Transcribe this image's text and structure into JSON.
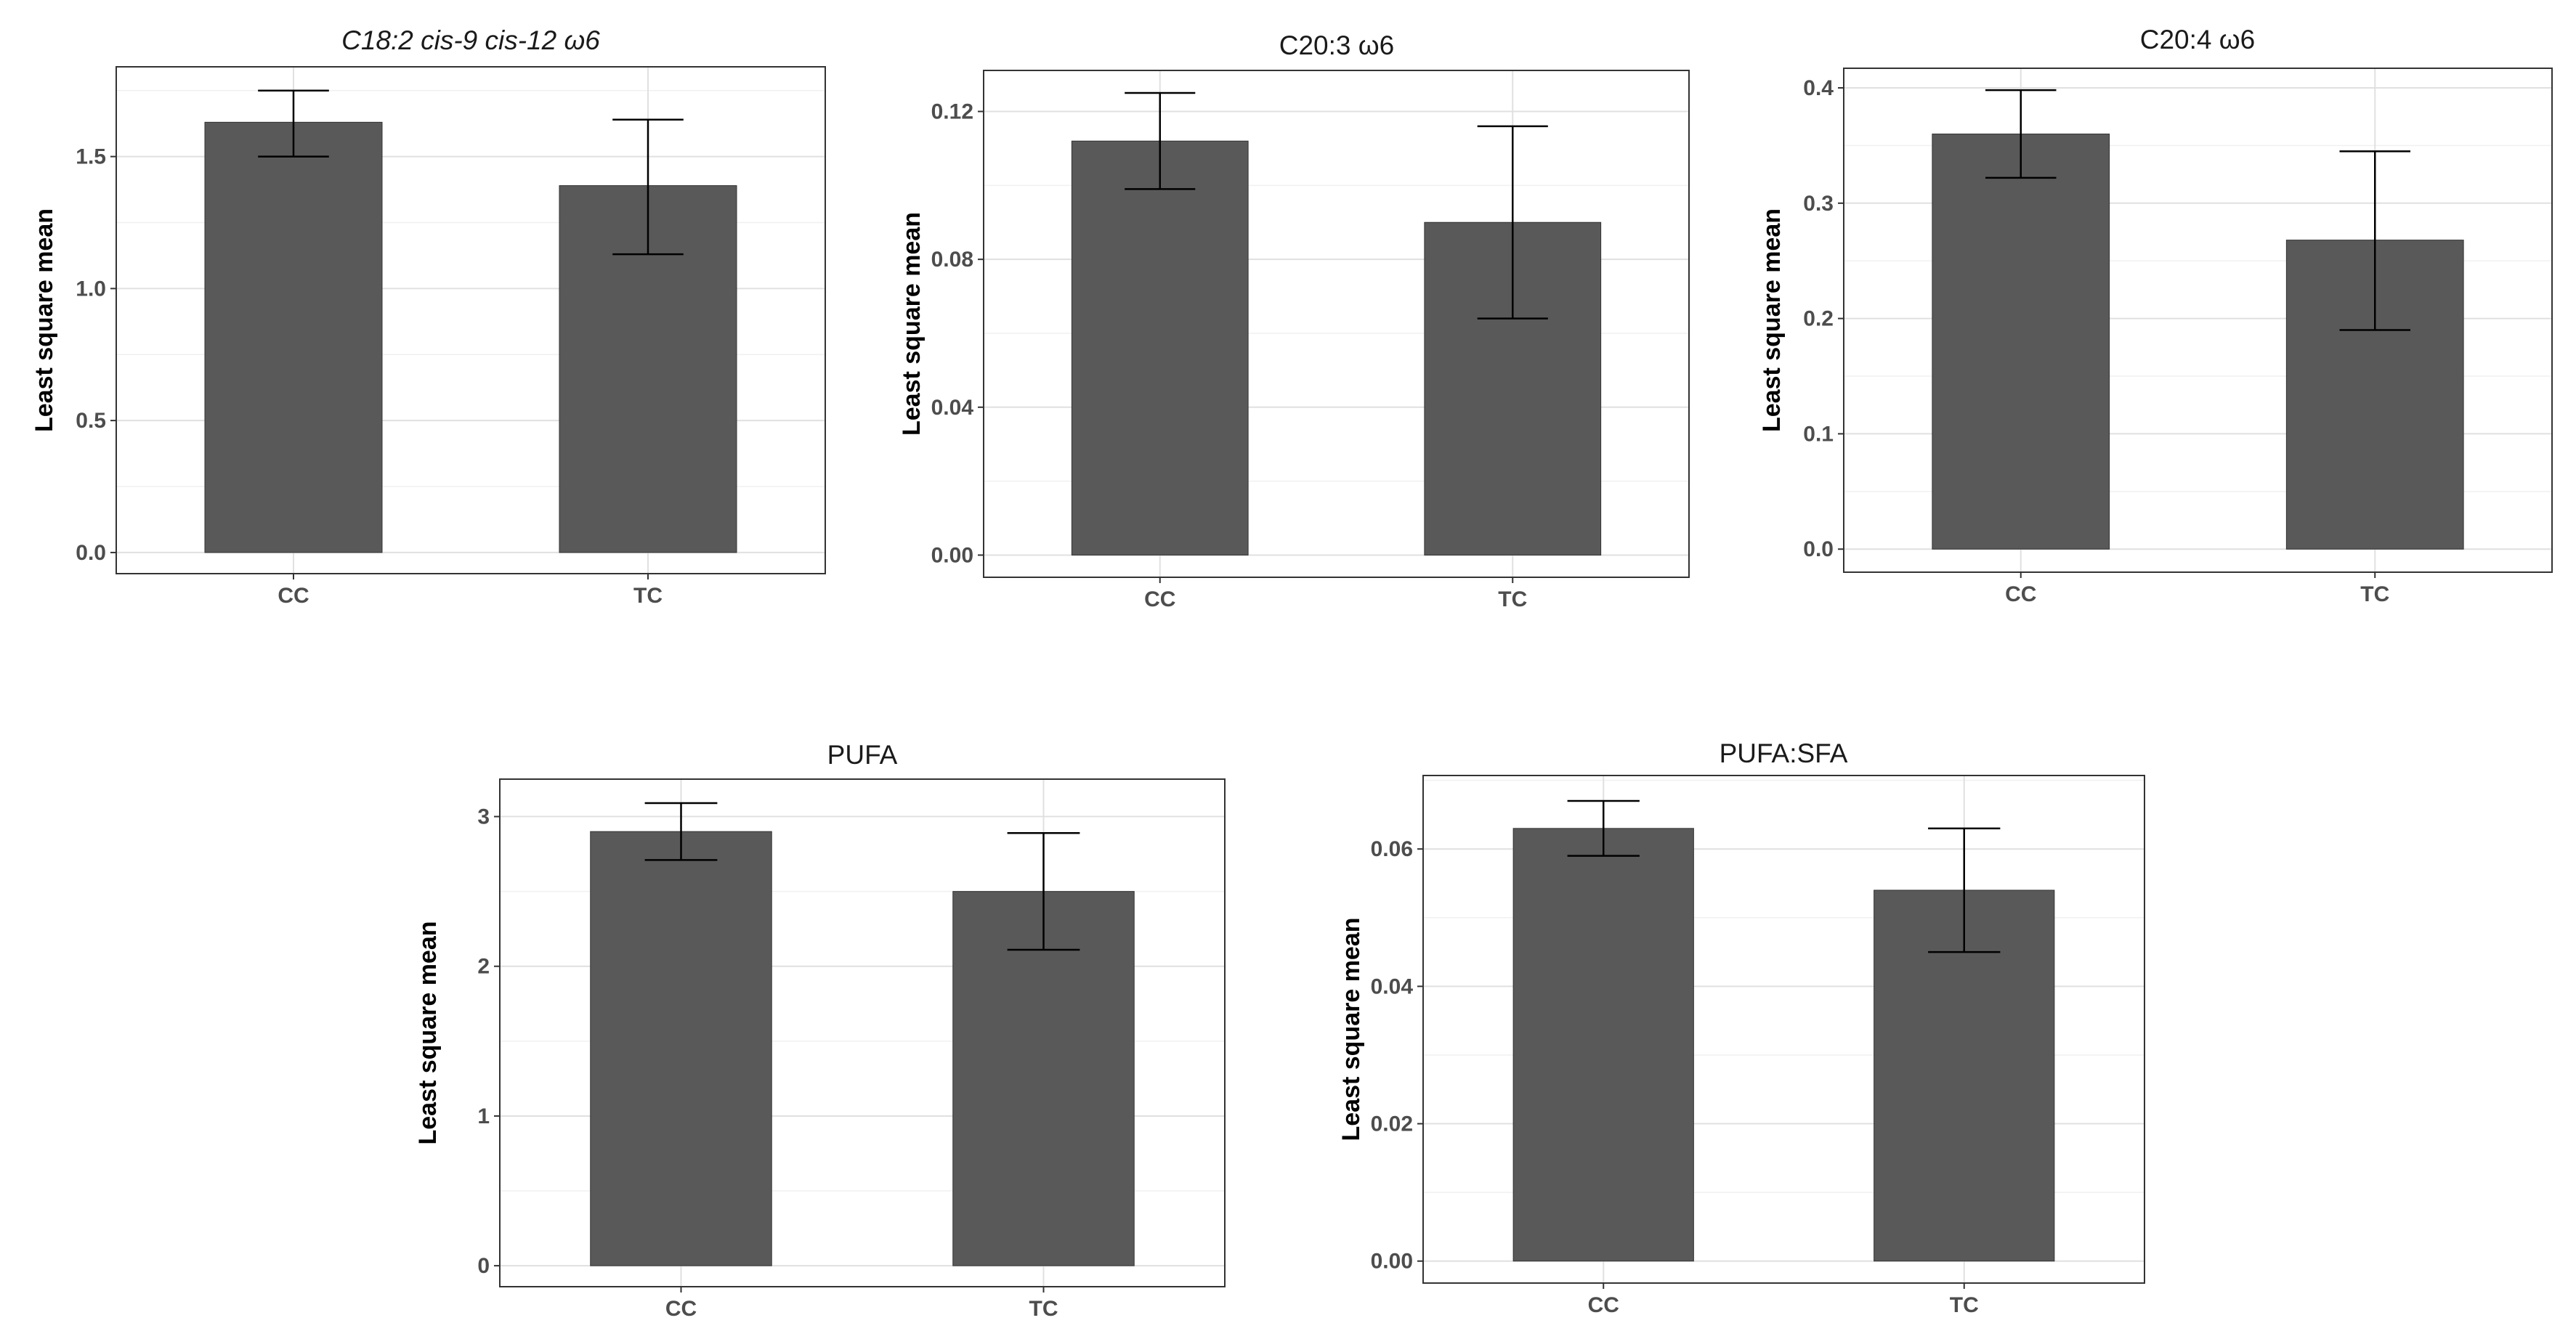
{
  "chart_data": [
    {
      "type": "bar",
      "title": "C18:2 cis-9 cis-12 ω6",
      "title_italic": true,
      "ylabel": "Least square mean",
      "xlabel": "",
      "categories": [
        "CC",
        "TC"
      ],
      "values": [
        1.63,
        1.39
      ],
      "error_low": [
        1.5,
        1.13
      ],
      "error_high": [
        1.75,
        1.64
      ],
      "ylim": [
        -0.08,
        1.84
      ],
      "yticks": [
        0.0,
        0.5,
        1.0,
        1.5
      ],
      "ytick_labels": [
        "0.0",
        "0.5",
        "1.0",
        "1.5"
      ],
      "grid": true
    },
    {
      "type": "bar",
      "title": "C20:3 ω6",
      "title_italic": false,
      "ylabel": "Least square mean",
      "xlabel": "",
      "categories": [
        "CC",
        "TC"
      ],
      "values": [
        0.112,
        0.09
      ],
      "error_low": [
        0.099,
        0.064
      ],
      "error_high": [
        0.125,
        0.116
      ],
      "ylim": [
        -0.006,
        0.1311
      ],
      "yticks": [
        0.0,
        0.04,
        0.08,
        0.12
      ],
      "ytick_labels": [
        "0.00",
        "0.04",
        "0.08",
        "0.12"
      ],
      "grid": true
    },
    {
      "type": "bar",
      "title": "C20:4 ω6",
      "title_italic": false,
      "ylabel": "Least square mean",
      "xlabel": "",
      "categories": [
        "CC",
        "TC"
      ],
      "values": [
        0.36,
        0.268
      ],
      "error_low": [
        0.322,
        0.19
      ],
      "error_high": [
        0.398,
        0.345
      ],
      "ylim": [
        -0.02,
        0.417
      ],
      "yticks": [
        0.0,
        0.1,
        0.2,
        0.3,
        0.4
      ],
      "ytick_labels": [
        "0.0",
        "0.1",
        "0.2",
        "0.3",
        "0.4"
      ],
      "grid": true
    },
    {
      "type": "bar",
      "title": "PUFA",
      "title_italic": false,
      "ylabel": "Least square mean",
      "xlabel": "",
      "categories": [
        "CC",
        "TC"
      ],
      "values": [
        2.9,
        2.5
      ],
      "error_low": [
        2.71,
        2.11
      ],
      "error_high": [
        3.09,
        2.89
      ],
      "ylim": [
        -0.14,
        3.25
      ],
      "yticks": [
        0,
        1,
        2,
        3
      ],
      "ytick_labels": [
        "0",
        "1",
        "2",
        "3"
      ],
      "grid": true
    },
    {
      "type": "bar",
      "title": "PUFA:SFA",
      "title_italic": false,
      "ylabel": "Least square mean",
      "xlabel": "",
      "categories": [
        "CC",
        "TC"
      ],
      "values": [
        0.063,
        0.054
      ],
      "error_low": [
        0.059,
        0.045
      ],
      "error_high": [
        0.067,
        0.063
      ],
      "ylim": [
        -0.0032,
        0.0707
      ],
      "yticks": [
        0.0,
        0.02,
        0.04,
        0.06
      ],
      "ytick_labels": [
        "0.00",
        "0.02",
        "0.04",
        "0.06"
      ],
      "grid": true
    }
  ],
  "colors": {
    "bar_fill": "#595959",
    "bar_stroke": "#333333",
    "error_bar": "#000000",
    "grid": "#e0e0e0",
    "panel_border": "#333333"
  }
}
